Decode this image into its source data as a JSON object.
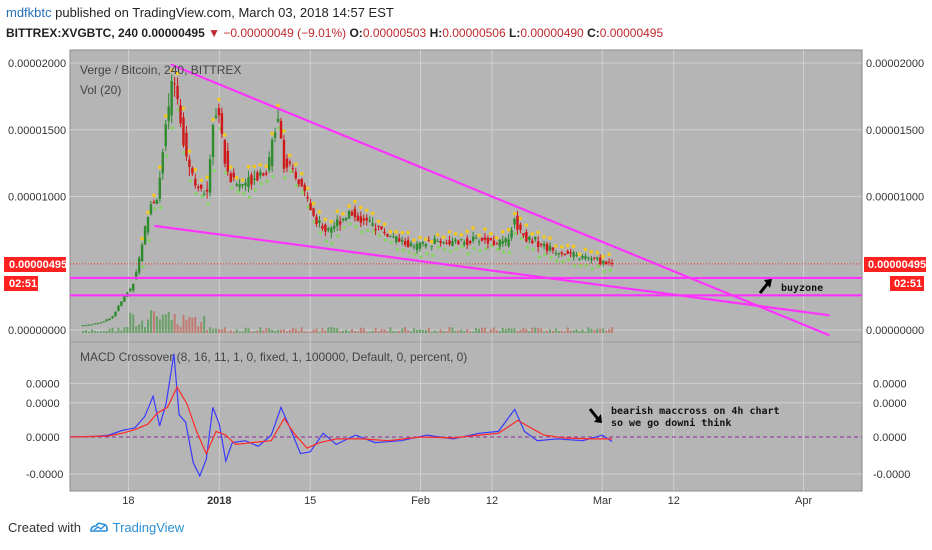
{
  "header": {
    "author": "mdfkbtc",
    "published": " published on TradingView.com, March 03, 2018 14:57 EST",
    "symbol": "BITTREX:XVGBTC, 240",
    "last": "0.00000495",
    "arrow": "▼",
    "change": "−0.00000049 (−9.01%)",
    "o_label": "O:",
    "o_value": "0.00000503",
    "h_label": "H:",
    "h_value": "0.00000506",
    "l_label": "L:",
    "l_value": "0.00000490",
    "c_label": "C:",
    "c_value": "0.00000495"
  },
  "footer": {
    "created_with": "Created with",
    "brand": "TradingView",
    "logo_icon": "tradingview-cloud-icon"
  },
  "colors": {
    "panel_bg": "#b5b5b5",
    "grid": "#cfcfcf",
    "trendline": "#ff33ff",
    "candle_up": "#2e8b2e",
    "candle_down": "#d01818",
    "macd": "#3a3aff",
    "signal": "#ff2a2a",
    "price_tag": "#ff2020",
    "dots_yellow": "#f3c81c",
    "dots_green": "#8bd06a"
  },
  "chart_data": [
    {
      "type": "candlestick",
      "title": "Verge / Bitcoin, 240, BITTREX",
      "indicator_label": "Vol (20)",
      "y_ticks": [
        "0.00002000",
        "0.00001500",
        "0.00001000",
        "0.00000000"
      ],
      "ylim": [
        0,
        2.03e-05
      ],
      "last_price_label": "0.00000495",
      "countdown_label": "02:51",
      "x_ticks": [
        {
          "label": "18",
          "day": 18
        },
        {
          "label": "2018",
          "day": 32
        },
        {
          "label": "15",
          "day": 46
        },
        {
          "label": "Feb",
          "day": 63
        },
        {
          "label": "12",
          "day": 74
        },
        {
          "label": "Mar",
          "day": 91
        },
        {
          "label": "12",
          "day": 102
        },
        {
          "label": "Apr",
          "day": 122
        }
      ],
      "xlim": [
        9,
        131
      ],
      "price_path": [
        [
          9,
          3e-07
        ],
        [
          12,
          4e-07
        ],
        [
          14,
          6e-07
        ],
        [
          15.5,
          1e-06
        ],
        [
          16.5,
          1.8e-06
        ],
        [
          17.5,
          2.6e-06
        ],
        [
          18.5,
          3.2e-06
        ],
        [
          19.5,
          5e-06
        ],
        [
          20.5,
          7.5e-06
        ],
        [
          21.5,
          9.5e-06
        ],
        [
          22.5,
          1e-05
        ],
        [
          23.5,
          1.4e-05
        ],
        [
          24.5,
          1.78e-05
        ],
        [
          25.2,
          1.85e-05
        ],
        [
          26,
          1.6e-05
        ],
        [
          27,
          1.3e-05
        ],
        [
          28,
          1.15e-05
        ],
        [
          29,
          1.05e-05
        ],
        [
          30,
          9.8e-06
        ],
        [
          31,
          1.55e-05
        ],
        [
          31.8,
          1.7e-05
        ],
        [
          32.6,
          1.35e-05
        ],
        [
          33.5,
          1.15e-05
        ],
        [
          35,
          1.08e-05
        ],
        [
          36.5,
          1.12e-05
        ],
        [
          38,
          1.18e-05
        ],
        [
          39.5,
          1.2e-05
        ],
        [
          41,
          1.65e-05
        ],
        [
          42,
          1.25e-05
        ],
        [
          43.5,
          1.15e-05
        ],
        [
          45,
          1.05e-05
        ],
        [
          46.5,
          8.5e-06
        ],
        [
          48,
          7.5e-06
        ],
        [
          50,
          8e-06
        ],
        [
          52,
          8.8e-06
        ],
        [
          54,
          8.2e-06
        ],
        [
          56,
          7.8e-06
        ],
        [
          58,
          7.1e-06
        ],
        [
          60,
          6.6e-06
        ],
        [
          62,
          6.2e-06
        ],
        [
          64,
          6.5e-06
        ],
        [
          66,
          6.7e-06
        ],
        [
          68,
          6.5e-06
        ],
        [
          70,
          6.6e-06
        ],
        [
          72,
          6.8e-06
        ],
        [
          74,
          6.6e-06
        ],
        [
          76,
          6.5e-06
        ],
        [
          77.5,
          8.2e-06
        ],
        [
          79,
          7e-06
        ],
        [
          81,
          6.6e-06
        ],
        [
          83,
          6e-06
        ],
        [
          85,
          5.8e-06
        ],
        [
          87,
          5.5e-06
        ],
        [
          89,
          5.4e-06
        ],
        [
          91,
          5.1e-06
        ],
        [
          92.5,
          4.95e-06
        ]
      ],
      "trendlines": [
        {
          "name": "upper-trendline",
          "from": [
            24.5,
            1.99e-05
          ],
          "to": [
            126,
            -4e-07
          ]
        },
        {
          "name": "lower-trendline",
          "from": [
            22,
            7.8e-06
          ],
          "to": [
            126,
            1.1e-06
          ]
        },
        {
          "name": "buyzone-top-line",
          "from": [
            9,
            3.9e-06
          ],
          "to": [
            131,
            3.9e-06
          ]
        },
        {
          "name": "buyzone-bottom-line",
          "from": [
            9,
            2.6e-06
          ],
          "to": [
            131,
            2.6e-06
          ]
        }
      ],
      "annotation": {
        "text": "buyzone",
        "arrow_icon": "arrow-northeast-icon"
      }
    },
    {
      "type": "line",
      "title": "MACD Crossover (8, 16, 11, 1, 0, fixed, 1, 100000, Default, 0, percent, 0)",
      "y_ticks": [
        "0.0000",
        "0.0000",
        "0.0000",
        "-0.0000"
      ],
      "ylim": [
        -3.3,
        5
      ],
      "series": [
        {
          "role": "macd",
          "values": [
            [
              9,
              0
            ],
            [
              13,
              0.04
            ],
            [
              15,
              0.1
            ],
            [
              17,
              0.35
            ],
            [
              19,
              0.5
            ],
            [
              20.5,
              1.1
            ],
            [
              21.8,
              2.2
            ],
            [
              22.8,
              0.6
            ],
            [
              23.8,
              1.8
            ],
            [
              25,
              4.5
            ],
            [
              25.8,
              1.2
            ],
            [
              26.8,
              0.8
            ],
            [
              28,
              -1.4
            ],
            [
              29,
              -2.1
            ],
            [
              30,
              -1.2
            ],
            [
              31,
              1.6
            ],
            [
              32,
              0.7
            ],
            [
              33,
              -1.3
            ],
            [
              34,
              -0.3
            ],
            [
              36,
              -0.2
            ],
            [
              38,
              -0.5
            ],
            [
              40,
              0.1
            ],
            [
              41.5,
              1.6
            ],
            [
              43,
              0.4
            ],
            [
              44.5,
              -0.9
            ],
            [
              46,
              -0.8
            ],
            [
              48,
              0.2
            ],
            [
              50,
              -0.4
            ],
            [
              53,
              0.1
            ],
            [
              56,
              -0.3
            ],
            [
              60,
              -0.2
            ],
            [
              64,
              0.1
            ],
            [
              68,
              -0.1
            ],
            [
              72,
              0.2
            ],
            [
              75,
              0.3
            ],
            [
              77.5,
              1.5
            ],
            [
              79,
              0.3
            ],
            [
              81,
              -0.2
            ],
            [
              84,
              -0.1
            ],
            [
              88,
              -0.2
            ],
            [
              91,
              0.1
            ],
            [
              92.5,
              -0.25
            ]
          ]
        },
        {
          "role": "signal",
          "values": [
            [
              9,
              0
            ],
            [
              13,
              0.03
            ],
            [
              15,
              0.06
            ],
            [
              17,
              0.2
            ],
            [
              19,
              0.4
            ],
            [
              21,
              0.7
            ],
            [
              22.5,
              1.3
            ],
            [
              24,
              1.6
            ],
            [
              25.5,
              2.7
            ],
            [
              27,
              1.8
            ],
            [
              28.5,
              0.3
            ],
            [
              30,
              -0.9
            ],
            [
              31.5,
              0.3
            ],
            [
              33,
              0.1
            ],
            [
              34.5,
              -0.4
            ],
            [
              37,
              -0.3
            ],
            [
              40,
              -0.2
            ],
            [
              42,
              1.0
            ],
            [
              43.5,
              0.2
            ],
            [
              45.5,
              -0.6
            ],
            [
              47.5,
              -0.3
            ],
            [
              50,
              -0.1
            ],
            [
              54,
              -0.1
            ],
            [
              58,
              -0.2
            ],
            [
              63,
              0
            ],
            [
              68,
              -0.05
            ],
            [
              72,
              0.1
            ],
            [
              75,
              0.2
            ],
            [
              78,
              0.9
            ],
            [
              80,
              0.5
            ],
            [
              82,
              0.1
            ],
            [
              85,
              -0.05
            ],
            [
              89,
              -0.1
            ],
            [
              92.5,
              -0.1
            ]
          ]
        }
      ],
      "zero_line": 0,
      "annotation": {
        "lines": [
          "bearish maccross on 4h chart",
          "so we go downi think"
        ],
        "arrow_icon": "arrow-southeast-icon"
      }
    }
  ]
}
